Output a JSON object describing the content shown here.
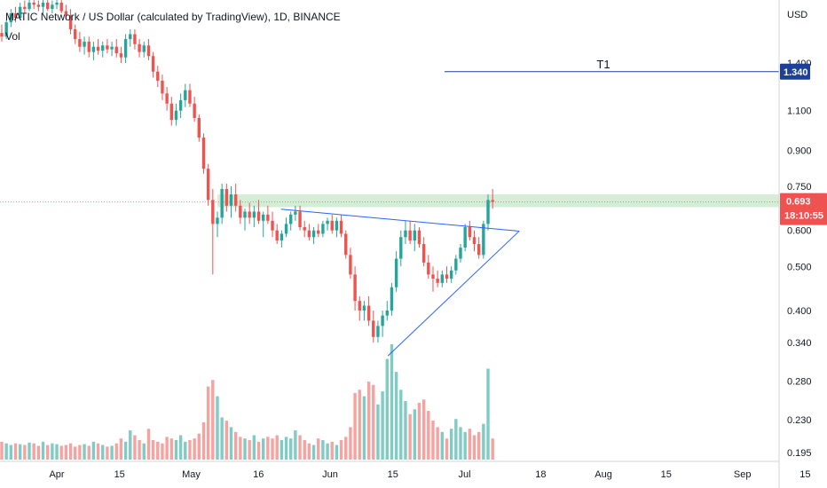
{
  "legend": {
    "title": "MATIC Network / US Dollar (calculated by TradingView), 1D, BINANCE",
    "vol_label": "Vol"
  },
  "chart_data": {
    "type": "candlestick",
    "title": "MATIC Network / US Dollar (calculated by TradingView), 1D, BINANCE",
    "ylabel": "USD",
    "y_scale": "log",
    "ylim": [
      0.19,
      1.95
    ],
    "y_ticks": [
      "1.400",
      "1.100",
      "0.900",
      "0.750",
      "0.600",
      "0.500",
      "0.400",
      "0.340",
      "0.280",
      "0.230",
      "0.195"
    ],
    "x_ticks": [
      "Apr",
      "15",
      "May",
      "16",
      "Jun",
      "15",
      "Jul",
      "18",
      "Aug",
      "15",
      "Sep",
      "15"
    ],
    "x_tick_days": [
      0,
      14,
      30,
      45,
      61,
      75,
      91,
      108,
      122,
      136,
      153,
      167
    ],
    "start_date": "2021-03-23",
    "last_price": "0.693",
    "countdown": "18:10:55",
    "colors": {
      "up": "#26a69a",
      "down": "#ef5350",
      "up_vol": "#80cbc4",
      "down_vol": "#f5a3a1",
      "line": "#2962ff",
      "zone": "#c8e6c9"
    },
    "candles_ohlc": [
      [
        1.63,
        1.7,
        1.56,
        1.6
      ],
      [
        1.6,
        1.74,
        1.58,
        1.72
      ],
      [
        1.72,
        1.84,
        1.68,
        1.8
      ],
      [
        1.8,
        1.86,
        1.72,
        1.76
      ],
      [
        1.76,
        1.9,
        1.74,
        1.86
      ],
      [
        1.86,
        1.92,
        1.8,
        1.84
      ],
      [
        1.84,
        1.94,
        1.82,
        1.9
      ],
      [
        1.9,
        1.96,
        1.84,
        1.88
      ],
      [
        1.88,
        1.92,
        1.82,
        1.86
      ],
      [
        1.86,
        1.94,
        1.8,
        1.9
      ],
      [
        1.9,
        1.93,
        1.82,
        1.84
      ],
      [
        1.84,
        1.92,
        1.8,
        1.88
      ],
      [
        1.88,
        1.94,
        1.84,
        1.9
      ],
      [
        1.9,
        1.94,
        1.8,
        1.82
      ],
      [
        1.82,
        1.88,
        1.74,
        1.78
      ],
      [
        1.78,
        1.84,
        1.62,
        1.66
      ],
      [
        1.66,
        1.7,
        1.54,
        1.58
      ],
      [
        1.58,
        1.64,
        1.48,
        1.52
      ],
      [
        1.52,
        1.6,
        1.46,
        1.56
      ],
      [
        1.56,
        1.6,
        1.44,
        1.48
      ],
      [
        1.48,
        1.56,
        1.42,
        1.52
      ],
      [
        1.52,
        1.58,
        1.46,
        1.49
      ],
      [
        1.49,
        1.56,
        1.44,
        1.53
      ],
      [
        1.53,
        1.58,
        1.47,
        1.5
      ],
      [
        1.5,
        1.56,
        1.45,
        1.52
      ],
      [
        1.52,
        1.58,
        1.44,
        1.47
      ],
      [
        1.47,
        1.52,
        1.4,
        1.44
      ],
      [
        1.44,
        1.62,
        1.4,
        1.58
      ],
      [
        1.58,
        1.66,
        1.52,
        1.62
      ],
      [
        1.62,
        1.66,
        1.5,
        1.54
      ],
      [
        1.54,
        1.58,
        1.44,
        1.48
      ],
      [
        1.48,
        1.56,
        1.44,
        1.53
      ],
      [
        1.53,
        1.58,
        1.42,
        1.45
      ],
      [
        1.45,
        1.48,
        1.3,
        1.34
      ],
      [
        1.34,
        1.38,
        1.24,
        1.28
      ],
      [
        1.28,
        1.32,
        1.16,
        1.2
      ],
      [
        1.2,
        1.24,
        1.1,
        1.14
      ],
      [
        1.14,
        1.18,
        1.02,
        1.05
      ],
      [
        1.05,
        1.14,
        1.02,
        1.1
      ],
      [
        1.1,
        1.2,
        1.06,
        1.16
      ],
      [
        1.16,
        1.26,
        1.12,
        1.22
      ],
      [
        1.22,
        1.26,
        1.12,
        1.14
      ],
      [
        1.14,
        1.18,
        1.04,
        1.06
      ],
      [
        1.06,
        1.08,
        0.94,
        0.96
      ],
      [
        0.96,
        0.98,
        0.8,
        0.82
      ],
      [
        0.82,
        0.84,
        0.68,
        0.7
      ],
      [
        0.7,
        0.74,
        0.48,
        0.62
      ],
      [
        0.62,
        0.66,
        0.58,
        0.64
      ],
      [
        0.64,
        0.76,
        0.62,
        0.74
      ],
      [
        0.74,
        0.76,
        0.66,
        0.68
      ],
      [
        0.68,
        0.75,
        0.64,
        0.72
      ],
      [
        0.72,
        0.76,
        0.66,
        0.68
      ],
      [
        0.68,
        0.7,
        0.62,
        0.64
      ],
      [
        0.64,
        0.67,
        0.6,
        0.66
      ],
      [
        0.66,
        0.69,
        0.62,
        0.64
      ],
      [
        0.64,
        0.68,
        0.61,
        0.66
      ],
      [
        0.66,
        0.7,
        0.62,
        0.63
      ],
      [
        0.63,
        0.66,
        0.58,
        0.65
      ],
      [
        0.65,
        0.68,
        0.62,
        0.63
      ],
      [
        0.63,
        0.66,
        0.58,
        0.6
      ],
      [
        0.6,
        0.62,
        0.56,
        0.57
      ],
      [
        0.57,
        0.6,
        0.55,
        0.59
      ],
      [
        0.59,
        0.64,
        0.58,
        0.62
      ],
      [
        0.62,
        0.66,
        0.6,
        0.65
      ],
      [
        0.65,
        0.68,
        0.63,
        0.66
      ],
      [
        0.66,
        0.68,
        0.6,
        0.61
      ],
      [
        0.61,
        0.63,
        0.58,
        0.6
      ],
      [
        0.6,
        0.62,
        0.57,
        0.58
      ],
      [
        0.58,
        0.61,
        0.56,
        0.6
      ],
      [
        0.6,
        0.62,
        0.58,
        0.59
      ],
      [
        0.59,
        0.63,
        0.58,
        0.62
      ],
      [
        0.62,
        0.64,
        0.6,
        0.63
      ],
      [
        0.63,
        0.65,
        0.59,
        0.6
      ],
      [
        0.6,
        0.64,
        0.58,
        0.63
      ],
      [
        0.63,
        0.65,
        0.58,
        0.59
      ],
      [
        0.59,
        0.6,
        0.52,
        0.53
      ],
      [
        0.53,
        0.55,
        0.47,
        0.48
      ],
      [
        0.48,
        0.5,
        0.4,
        0.42
      ],
      [
        0.42,
        0.43,
        0.38,
        0.4
      ],
      [
        0.4,
        0.42,
        0.38,
        0.41
      ],
      [
        0.41,
        0.43,
        0.37,
        0.38
      ],
      [
        0.38,
        0.4,
        0.34,
        0.35
      ],
      [
        0.35,
        0.38,
        0.34,
        0.37
      ],
      [
        0.37,
        0.4,
        0.35,
        0.39
      ],
      [
        0.39,
        0.42,
        0.38,
        0.4
      ],
      [
        0.4,
        0.46,
        0.39,
        0.45
      ],
      [
        0.45,
        0.54,
        0.44,
        0.52
      ],
      [
        0.52,
        0.6,
        0.5,
        0.58
      ],
      [
        0.58,
        0.63,
        0.56,
        0.6
      ],
      [
        0.6,
        0.63,
        0.56,
        0.57
      ],
      [
        0.57,
        0.62,
        0.54,
        0.6
      ],
      [
        0.6,
        0.61,
        0.55,
        0.56
      ],
      [
        0.56,
        0.58,
        0.5,
        0.51
      ],
      [
        0.51,
        0.53,
        0.47,
        0.48
      ],
      [
        0.48,
        0.5,
        0.44,
        0.47
      ],
      [
        0.47,
        0.49,
        0.45,
        0.46
      ],
      [
        0.46,
        0.49,
        0.45,
        0.48
      ],
      [
        0.48,
        0.5,
        0.46,
        0.47
      ],
      [
        0.47,
        0.5,
        0.46,
        0.49
      ],
      [
        0.49,
        0.53,
        0.48,
        0.52
      ],
      [
        0.52,
        0.56,
        0.51,
        0.55
      ],
      [
        0.55,
        0.62,
        0.54,
        0.61
      ],
      [
        0.61,
        0.63,
        0.57,
        0.58
      ],
      [
        0.58,
        0.6,
        0.54,
        0.56
      ],
      [
        0.56,
        0.58,
        0.52,
        0.53
      ],
      [
        0.53,
        0.63,
        0.52,
        0.62
      ],
      [
        0.62,
        0.72,
        0.6,
        0.7
      ],
      [
        0.7,
        0.74,
        0.67,
        0.693
      ]
    ],
    "volumes": [
      22,
      20,
      18,
      20,
      19,
      18,
      21,
      20,
      17,
      22,
      18,
      20,
      19,
      17,
      18,
      20,
      16,
      18,
      19,
      17,
      22,
      20,
      18,
      16,
      17,
      20,
      26,
      22,
      36,
      30,
      24,
      20,
      38,
      24,
      22,
      20,
      28,
      26,
      24,
      30,
      22,
      24,
      26,
      32,
      46,
      90,
      98,
      78,
      52,
      48,
      40,
      34,
      28,
      26,
      24,
      30,
      22,
      26,
      28,
      26,
      30,
      24,
      28,
      26,
      36,
      30,
      24,
      20,
      18,
      26,
      24,
      20,
      22,
      18,
      24,
      28,
      40,
      82,
      86,
      78,
      96,
      92,
      68,
      84,
      124,
      142,
      108,
      86,
      72,
      56,
      62,
      70,
      74,
      60,
      48,
      40,
      34,
      26,
      38,
      50,
      40,
      34,
      38,
      30,
      34,
      44,
      112,
      26
    ]
  },
  "annotations": {
    "target_label": "T1",
    "target_price": "1.340",
    "target_value": 1.34,
    "triangle": {
      "upper": {
        "from_index": 57,
        "from_price": 0.668,
        "to_index": 107,
        "to_price": 0.598
      },
      "lower": {
        "from_index": 60,
        "from_price": 0.318,
        "to_index": 107,
        "to_price": 0.598
      }
    },
    "zone": {
      "from_index": 47,
      "high": 0.72,
      "low": 0.675
    },
    "target_line_start_index": 83
  }
}
